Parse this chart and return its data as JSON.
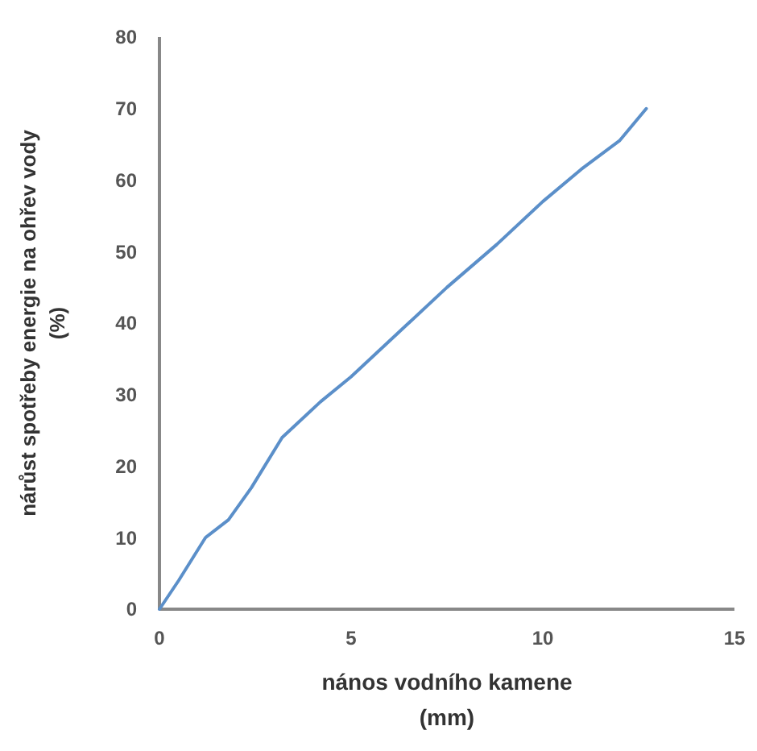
{
  "chart_data": {
    "type": "line",
    "xlabel": "nános vodního kamene\n(mm)",
    "ylabel": "nárůst spotřeby energie na ohřev vody\n(%)",
    "xlim": [
      0,
      15
    ],
    "xticks": [
      0,
      5,
      10,
      15
    ],
    "ylim": [
      0,
      80
    ],
    "yticks": [
      0,
      10,
      20,
      30,
      40,
      50,
      60,
      70,
      80
    ],
    "series": [
      {
        "color": "#5b8fc9",
        "x": [
          0,
          0.5,
          1.2,
          1.8,
          2.4,
          3.2,
          4.2,
          5,
          6.2,
          7.5,
          8.8,
          10,
          11,
          12,
          12.7
        ],
        "values": [
          0,
          4,
          10,
          12.5,
          17,
          24,
          29,
          32.5,
          38.5,
          45,
          51,
          57,
          61.5,
          65.5,
          70
        ]
      }
    ]
  }
}
